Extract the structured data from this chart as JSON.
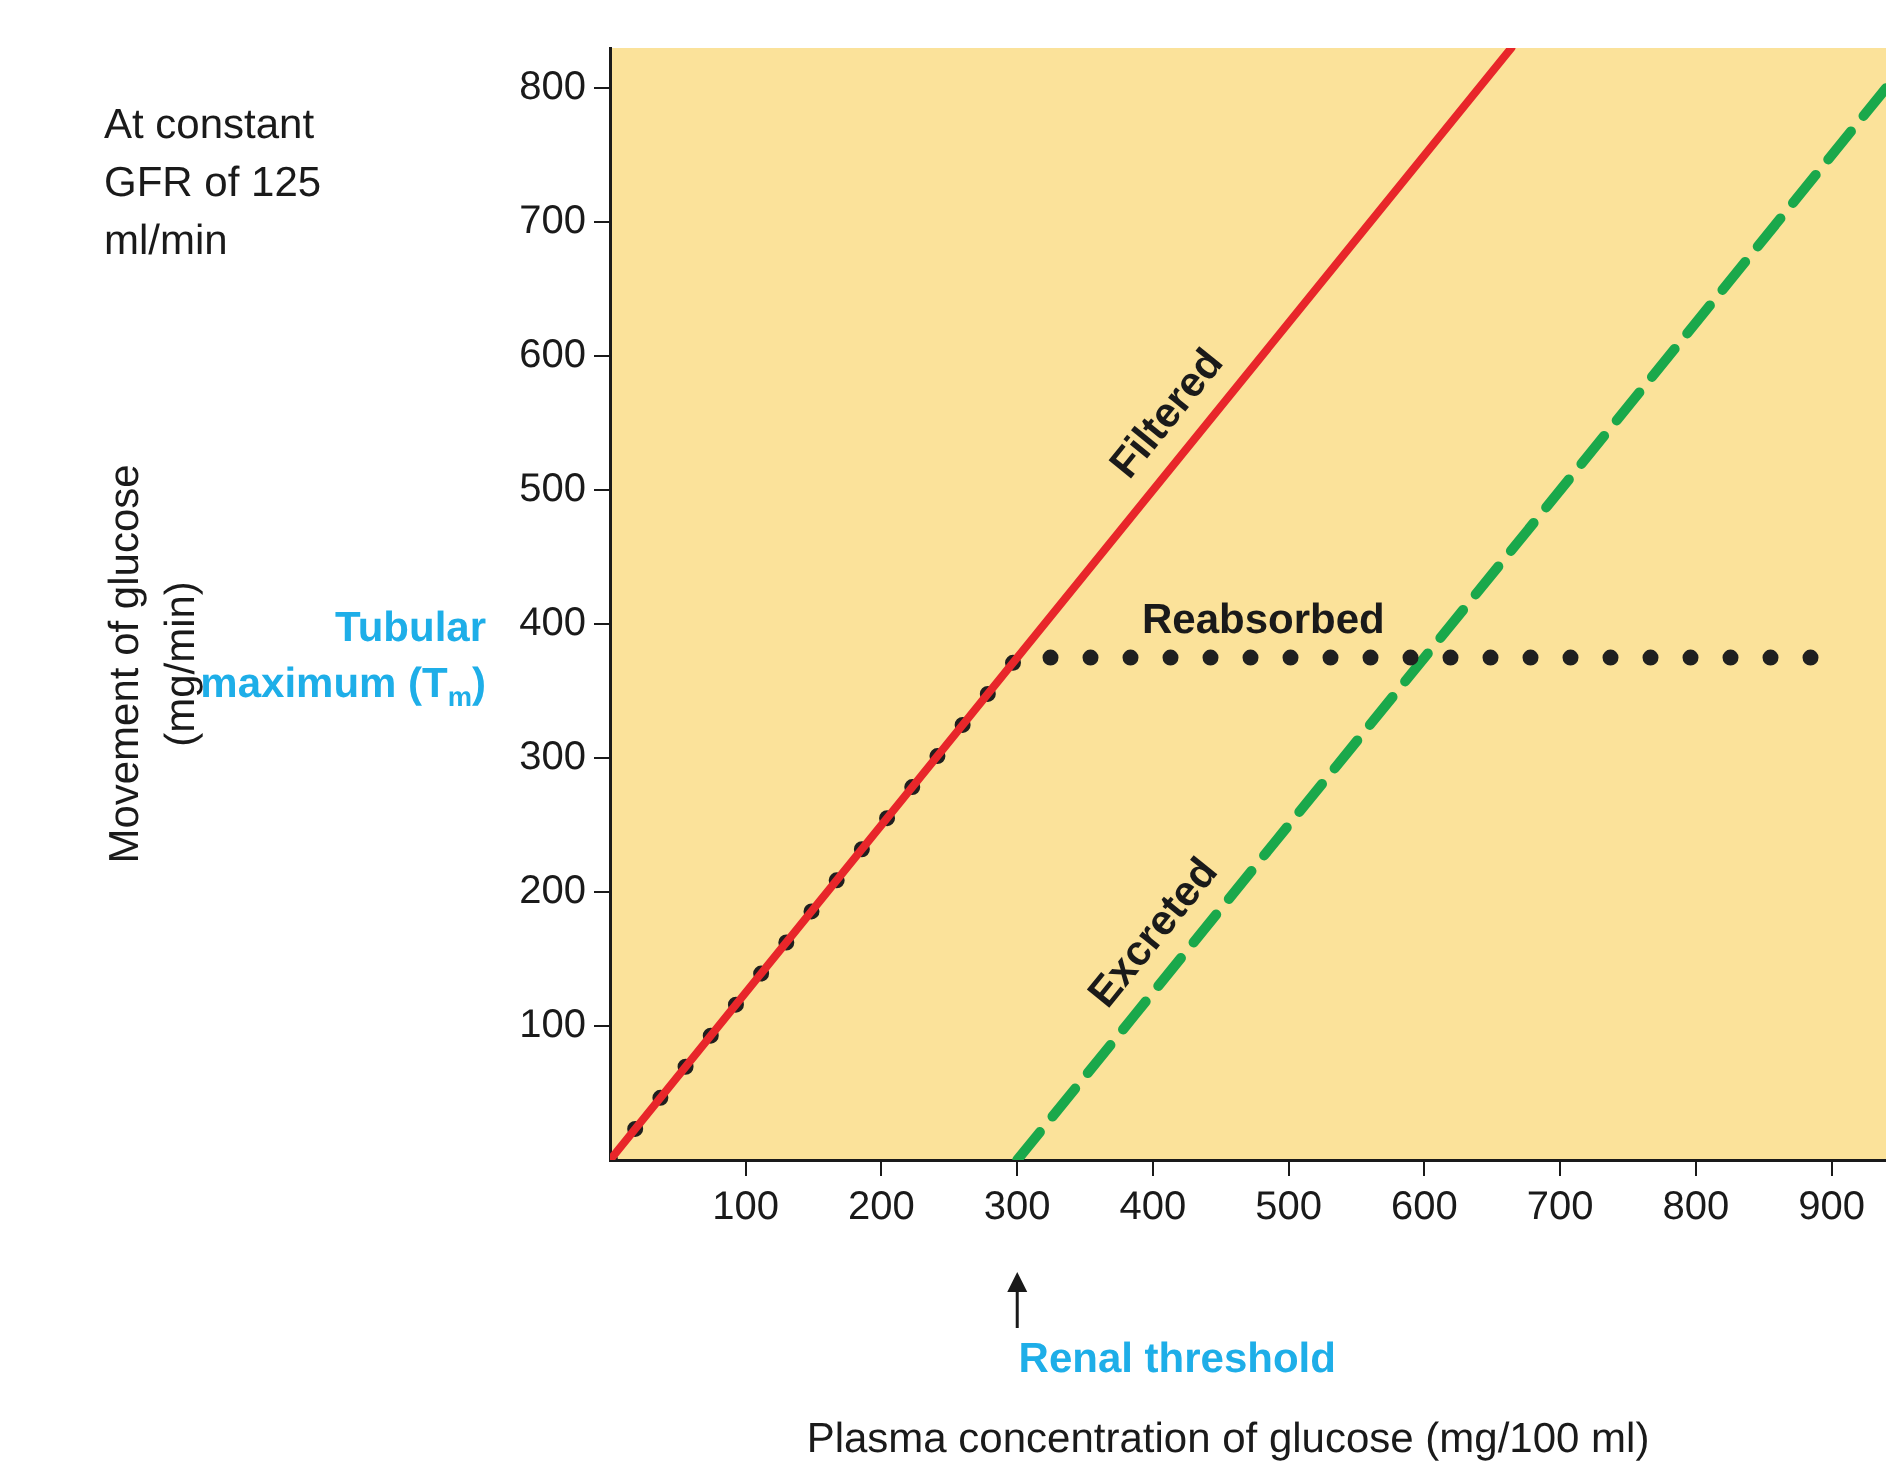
{
  "chart_data": {
    "type": "line",
    "xlabel": "Plasma concentration of glucose (mg/100 ml)",
    "xlim": [
      0,
      940
    ],
    "ylim": [
      0,
      830
    ],
    "xticks": [
      100,
      200,
      300,
      400,
      500,
      600,
      700,
      800,
      900
    ],
    "yticks": [
      100,
      200,
      300,
      400,
      500,
      600,
      700,
      800
    ],
    "grid": false,
    "legend": false,
    "marker": "none",
    "series": [
      {
        "name": "Filtered",
        "x": [
          0,
          664
        ],
        "values": [
          0,
          830
        ],
        "color": "#e8262a",
        "line_style": "solid"
      },
      {
        "name": "Reabsorbed",
        "x": [
          0,
          300,
          885
        ],
        "values": [
          0,
          375,
          375
        ],
        "color": "#1f1f1f",
        "line_style": "dotted"
      },
      {
        "name": "Excreted",
        "x": [
          300,
          940
        ],
        "values": [
          0,
          800
        ],
        "color": "#1aa84b",
        "line_style": "dashed"
      }
    ],
    "annotations": [
      "At constant GFR of 125 ml/min",
      "Tubular maximum (T$_{m}$)",
      "Renal threshold",
      "Movement of glucose (mg/min)"
    ]
  }
}
